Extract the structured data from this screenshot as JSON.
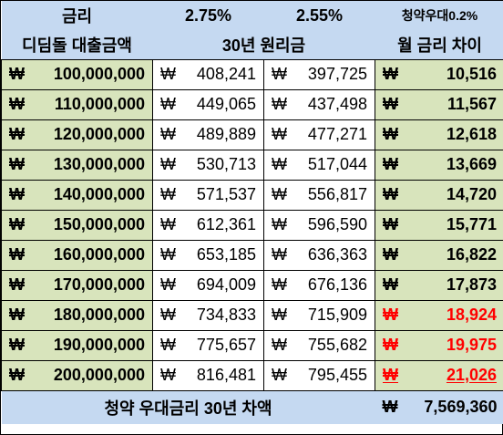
{
  "header": {
    "rate_label": "금리",
    "rate_a": "2.75%",
    "rate_b": "2.55%",
    "rate_note": "청약우대0.2%",
    "loan_col": "디딤돌 대출금액",
    "payment_col": "30년 원리금",
    "diff_col": "월 금리 차이"
  },
  "currency": "₩",
  "rows": [
    {
      "loan": "100,000,000",
      "pay_a": "408,241",
      "pay_b": "397,725",
      "diff": "10,516",
      "highlight": false
    },
    {
      "loan": "110,000,000",
      "pay_a": "449,065",
      "pay_b": "437,498",
      "diff": "11,567",
      "highlight": false
    },
    {
      "loan": "120,000,000",
      "pay_a": "489,889",
      "pay_b": "477,271",
      "diff": "12,618",
      "highlight": false
    },
    {
      "loan": "130,000,000",
      "pay_a": "530,713",
      "pay_b": "517,044",
      "diff": "13,669",
      "highlight": false
    },
    {
      "loan": "140,000,000",
      "pay_a": "571,537",
      "pay_b": "556,817",
      "diff": "14,720",
      "highlight": false
    },
    {
      "loan": "150,000,000",
      "pay_a": "612,361",
      "pay_b": "596,590",
      "diff": "15,771",
      "highlight": false
    },
    {
      "loan": "160,000,000",
      "pay_a": "653,185",
      "pay_b": "636,363",
      "diff": "16,822",
      "highlight": false
    },
    {
      "loan": "170,000,000",
      "pay_a": "694,009",
      "pay_b": "676,136",
      "diff": "17,873",
      "highlight": false
    },
    {
      "loan": "180,000,000",
      "pay_a": "734,833",
      "pay_b": "715,909",
      "diff": "18,924",
      "highlight": true
    },
    {
      "loan": "190,000,000",
      "pay_a": "775,657",
      "pay_b": "755,682",
      "diff": "19,975",
      "highlight": true
    },
    {
      "loan": "200,000,000",
      "pay_a": "816,481",
      "pay_b": "795,455",
      "diff": "21,026",
      "highlight": true
    }
  ],
  "footer": {
    "label": "청약 우대금리 30년 차액",
    "total": "7,569,360"
  },
  "colors": {
    "header_bg": "#c5d9f1",
    "loan_bg": "#d8e4bc",
    "highlight_text": "#ff0000"
  }
}
